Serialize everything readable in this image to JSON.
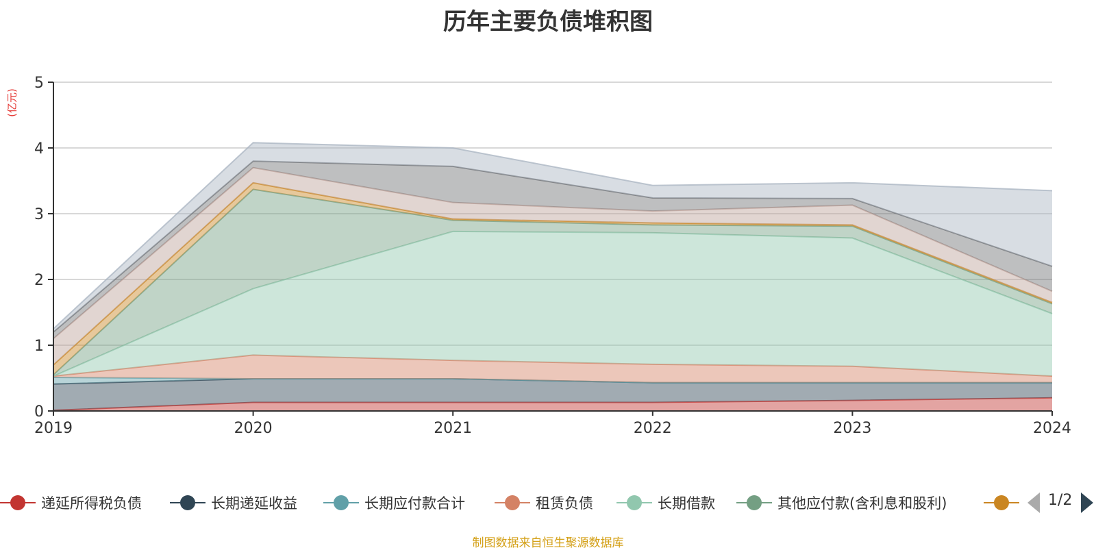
{
  "chart_data": {
    "type": "area",
    "stacked": true,
    "title": "历年主要负债堆积图",
    "ylabel": "(亿元)",
    "xlabel": "",
    "x": [
      "2019",
      "2020",
      "2021",
      "2022",
      "2023",
      "2024"
    ],
    "ylim": [
      0,
      5
    ],
    "yticks": [
      0,
      1,
      2,
      3,
      4,
      5
    ],
    "grid": true,
    "legend_position": "bottom",
    "series": [
      {
        "name": "递延所得税负债",
        "color": "#c23531",
        "values": [
          0.01,
          0.13,
          0.13,
          0.13,
          0.16,
          0.2
        ]
      },
      {
        "name": "长期递延收益",
        "color": "#2f4554",
        "values": [
          0.4,
          0.36,
          0.36,
          0.3,
          0.27,
          0.23
        ]
      },
      {
        "name": "长期应付款合计",
        "color": "#61a0a8",
        "values": [
          0.1,
          0.0,
          0.0,
          0.0,
          0.0,
          0.0
        ]
      },
      {
        "name": "租赁负债",
        "color": "#d48265",
        "values": [
          0.02,
          0.36,
          0.28,
          0.28,
          0.25,
          0.1
        ]
      },
      {
        "name": "长期借款",
        "color": "#91c7ae",
        "values": [
          0.0,
          1.01,
          1.96,
          2.0,
          1.95,
          0.95
        ]
      },
      {
        "name": "其他应付款(含利息和股利)",
        "color": "#749f83",
        "values": [
          0.02,
          1.51,
          0.17,
          0.12,
          0.18,
          0.15
        ]
      },
      {
        "name": "",
        "color": "#ca8622",
        "values": [
          0.15,
          0.1,
          0.02,
          0.03,
          0.02,
          0.02
        ]
      },
      {
        "name": "",
        "color": "#bda29a",
        "values": [
          0.4,
          0.23,
          0.25,
          0.18,
          0.3,
          0.17
        ]
      },
      {
        "name": "",
        "color": "#6e7074",
        "values": [
          0.1,
          0.1,
          0.55,
          0.2,
          0.1,
          0.38
        ]
      },
      {
        "name": "",
        "color": "#a9b4c2",
        "values": [
          0.05,
          0.28,
          0.28,
          0.19,
          0.24,
          1.15
        ]
      }
    ]
  },
  "legend": {
    "page": "1/2"
  },
  "source_note": "制图数据来自恒生聚源数据库"
}
